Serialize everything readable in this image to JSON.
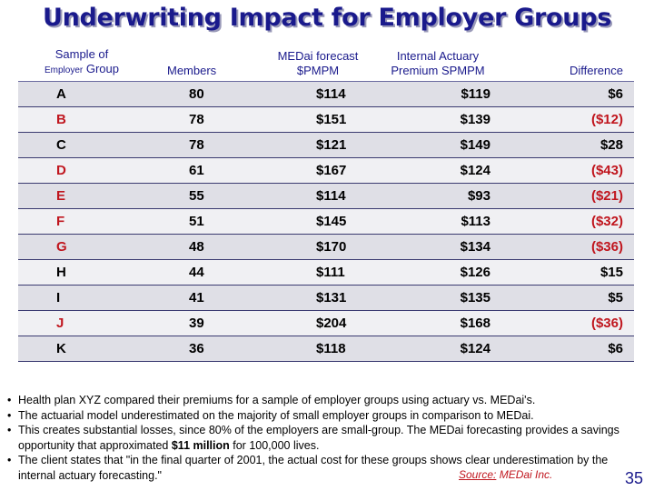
{
  "title": "Underwriting Impact for Employer Groups",
  "table": {
    "headers": {
      "col1_line1": "Sample of",
      "col1_small": "Employer",
      "col1_line2": "Group",
      "col2": "Members",
      "col3_line1": "MEDai forecast",
      "col3_line2": "$PMPM",
      "col4_line1": "Internal Actuary",
      "col4_line2": "Premium SPMPM",
      "col5": "Difference"
    },
    "rows": [
      {
        "group": "A",
        "members": "80",
        "forecast": "$114",
        "premium": "$119",
        "difference": "$6"
      },
      {
        "group": "B",
        "members": "78",
        "forecast": "$151",
        "premium": "$139",
        "difference": "($12)"
      },
      {
        "group": "C",
        "members": "78",
        "forecast": "$121",
        "premium": "$149",
        "difference": "$28"
      },
      {
        "group": "D",
        "members": "61",
        "forecast": "$167",
        "premium": "$124",
        "difference": "($43)"
      },
      {
        "group": "E",
        "members": "55",
        "forecast": "$114",
        "premium": "$93",
        "difference": "($21)"
      },
      {
        "group": "F",
        "members": "51",
        "forecast": "$145",
        "premium": "$113",
        "difference": "($32)"
      },
      {
        "group": "G",
        "members": "48",
        "forecast": "$170",
        "premium": "$134",
        "difference": "($36)"
      },
      {
        "group": "H",
        "members": "44",
        "forecast": "$111",
        "premium": "$126",
        "difference": "$15"
      },
      {
        "group": "I",
        "members": "41",
        "forecast": "$131",
        "premium": "$135",
        "difference": "$5"
      },
      {
        "group": "J",
        "members": "39",
        "forecast": "$204",
        "premium": "$168",
        "difference": "($36)"
      },
      {
        "group": "K",
        "members": "36",
        "forecast": "$118",
        "premium": "$124",
        "difference": "$6"
      }
    ]
  },
  "notes": {
    "bullet": "•",
    "n1": "Health plan XYZ compared their premiums for a sample of employer groups using actuary vs. MEDai's.",
    "n2": "The actuarial model underestimated on the majority of small employer groups in comparison to MEDai.",
    "n3_pre": "This creates substantial losses, since 80% of the employers are small-group. The MEDai forecasting provides a savings opportunity that approximated ",
    "n3_bold": "$11 million",
    "n3_post": " for 100,000 lives.",
    "n4": "The client states that \"in the final quarter of 2001, the actual cost for these groups shows clear underestimation by the internal actuary forecasting.\""
  },
  "source": {
    "label": "Source:",
    "text": " MEDai Inc."
  },
  "page_number": "35",
  "colors": {
    "title": "#1a1a8c",
    "negative": "#c0161e",
    "row_odd": "#dfdfe6",
    "row_even": "#f0f0f3"
  }
}
